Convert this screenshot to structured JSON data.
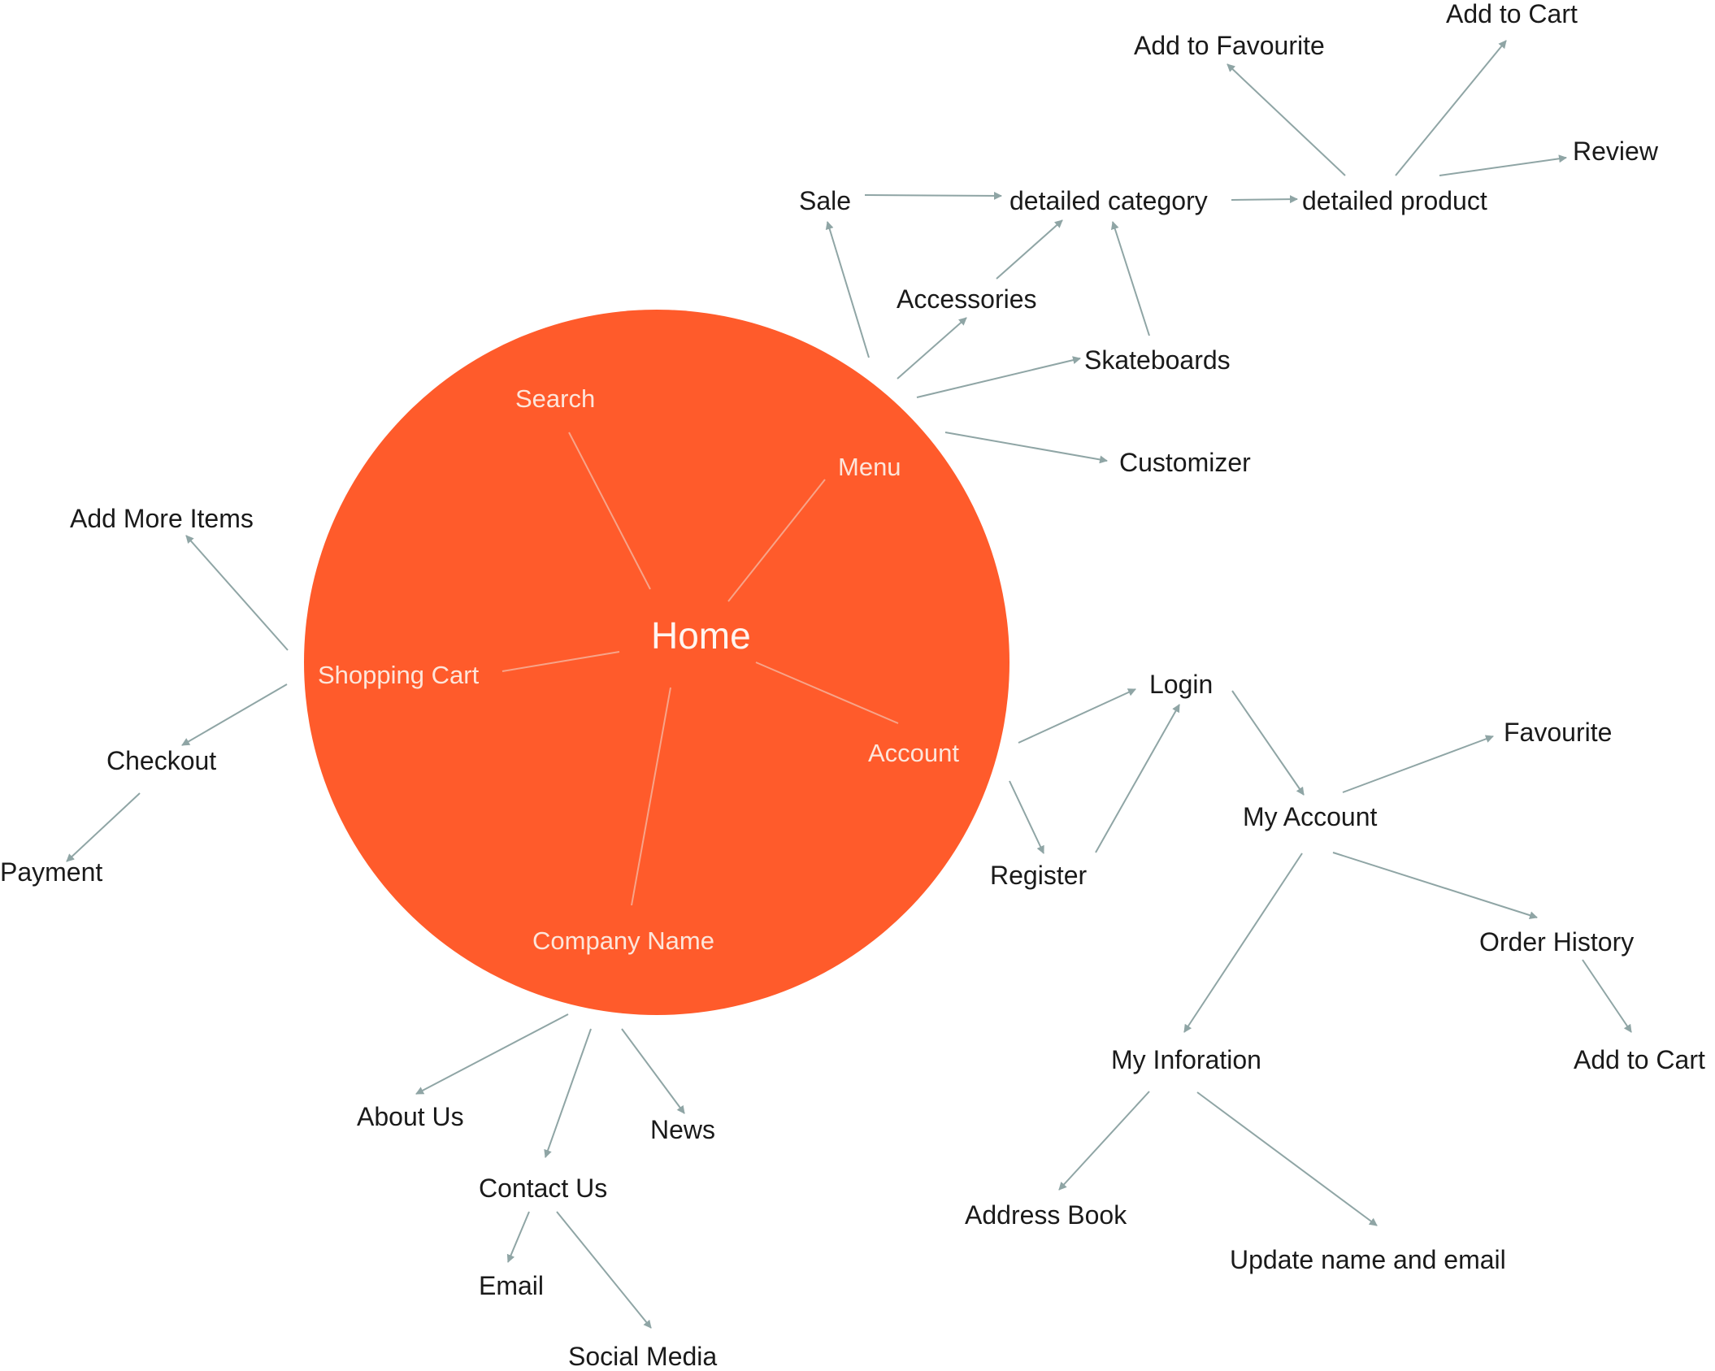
{
  "colors": {
    "circle": "#ff5b2b",
    "inner_line": "#f7a489",
    "arrow": "#8fa5a5",
    "text": "#1a1a1a",
    "inner_text": "#fde5da"
  },
  "nodes": {
    "home": "Home",
    "search": "Search",
    "menu": "Menu",
    "shopping_cart": "Shopping Cart",
    "account": "Account",
    "company_name": "Company Name",
    "sale": "Sale",
    "detailed_category": "detailed category",
    "detailed_product": "detailed product",
    "add_to_favourite": "Add to Favourite",
    "add_to_cart_top": "Add to Cart",
    "review": "Review",
    "accessories": "Accessories",
    "skateboards": "Skateboards",
    "customizer": "Customizer",
    "add_more_items": "Add More Items",
    "checkout": "Checkout",
    "payment": "Payment",
    "login": "Login",
    "register": "Register",
    "my_account": "My Account",
    "favourite": "Favourite",
    "order_history": "Order History",
    "add_to_cart_order": "Add to Cart",
    "my_information": "My Inforation",
    "address_book": "Address Book",
    "update_name_email": "Update name and email",
    "about_us": "About Us",
    "contact_us": "Contact Us",
    "news": "News",
    "email": "Email",
    "social_media": "Social Media"
  }
}
